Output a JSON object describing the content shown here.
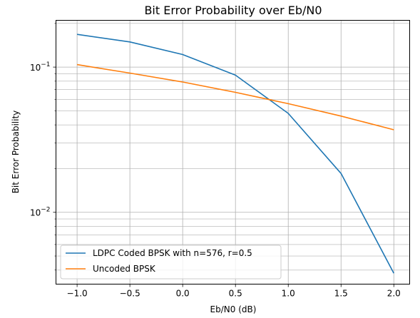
{
  "chart_data": {
    "type": "line",
    "title": "Bit Error Probability over Eb/N0",
    "xlabel": "Eb/N0 (dB)",
    "ylabel": "Bit Error Probability",
    "yscale": "log",
    "grid": true,
    "grid_minor_y": true,
    "legend_position": "lower-left",
    "xlim": [
      -1.2,
      2.15
    ],
    "ylim": [
      0.0032,
      0.21
    ],
    "x_ticks": [
      "−1.0",
      "−0.5",
      "0.0",
      "0.5",
      "1.0",
      "1.5",
      "2.0"
    ],
    "x_tick_values": [
      -1.0,
      -0.5,
      0.0,
      0.5,
      1.0,
      1.5,
      2.0
    ],
    "y_ticks": [
      {
        "value": 0.1,
        "base": "10",
        "exp": "−1"
      },
      {
        "value": 0.01,
        "base": "10",
        "exp": "−2"
      }
    ],
    "x": [
      -1.0,
      -0.5,
      0.0,
      0.5,
      1.0,
      1.5,
      2.0
    ],
    "series": [
      {
        "name": "LDPC Coded BPSK with n=576, r=0.5",
        "color": "#1f77b4",
        "values": [
          0.168,
          0.149,
          0.122,
          0.088,
          0.048,
          0.0185,
          0.0038
        ]
      },
      {
        "name": "Uncoded BPSK",
        "color": "#ff7f0e",
        "values": [
          0.104,
          0.091,
          0.079,
          0.067,
          0.056,
          0.046,
          0.037
        ]
      }
    ]
  }
}
